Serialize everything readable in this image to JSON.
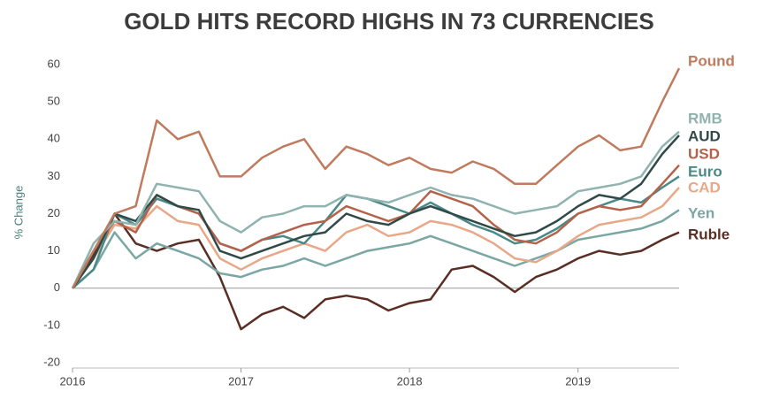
{
  "chart_data": {
    "type": "line",
    "title": "GOLD HITS RECORD HIGHS IN 73 CURRENCIES",
    "y_label": "% Change",
    "x": [
      2016,
      2016.125,
      2016.25,
      2016.375,
      2016.5,
      2016.625,
      2016.75,
      2016.875,
      2017,
      2017.125,
      2017.25,
      2017.375,
      2017.5,
      2017.625,
      2017.75,
      2017.875,
      2018,
      2018.125,
      2018.25,
      2018.375,
      2018.5,
      2018.625,
      2018.75,
      2018.875,
      2019,
      2019.125,
      2019.25,
      2019.375,
      2019.5,
      2019.6
    ],
    "xlim": [
      2016,
      2019.6
    ],
    "xticks": [
      2016,
      2017,
      2018,
      2019
    ],
    "ylim": [
      -20,
      60
    ],
    "yticks": [
      -20,
      -10,
      0,
      10,
      20,
      30,
      40,
      50,
      60
    ],
    "series": [
      {
        "name": "Pound",
        "color": "#c07a5e",
        "values": [
          0,
          10,
          20,
          22,
          45,
          40,
          42,
          30,
          30,
          35,
          38,
          40,
          32,
          38,
          36,
          33,
          35,
          32,
          31,
          34,
          32,
          28,
          28,
          33,
          38,
          41,
          37,
          38,
          50,
          59
        ]
      },
      {
        "name": "RMB",
        "color": "#8fb3ae",
        "values": [
          0,
          12,
          18,
          17,
          28,
          27,
          26,
          18,
          15,
          19,
          20,
          22,
          22,
          25,
          24,
          23,
          25,
          27,
          25,
          24,
          22,
          20,
          21,
          22,
          26,
          27,
          28,
          30,
          38,
          42
        ]
      },
      {
        "name": "AUD",
        "color": "#2f4a48",
        "values": [
          0,
          8,
          20,
          18,
          25,
          22,
          21,
          10,
          8,
          10,
          12,
          14,
          15,
          20,
          18,
          17,
          20,
          22,
          20,
          18,
          16,
          14,
          15,
          18,
          22,
          25,
          24,
          28,
          36,
          41
        ]
      },
      {
        "name": "USD",
        "color": "#b5624a",
        "values": [
          0,
          10,
          18,
          15,
          25,
          22,
          20,
          12,
          10,
          13,
          15,
          17,
          18,
          22,
          20,
          18,
          20,
          26,
          24,
          22,
          17,
          13,
          12,
          15,
          20,
          22,
          21,
          22,
          28,
          33
        ]
      },
      {
        "name": "Euro",
        "color": "#4a8a86",
        "values": [
          0,
          5,
          20,
          17,
          24,
          22,
          20,
          12,
          10,
          13,
          14,
          12,
          18,
          25,
          24,
          22,
          20,
          23,
          20,
          17,
          15,
          12,
          13,
          16,
          20,
          22,
          24,
          23,
          27,
          30
        ]
      },
      {
        "name": "CAD",
        "color": "#e8a888",
        "values": [
          0,
          8,
          17,
          16,
          22,
          18,
          17,
          8,
          5,
          8,
          10,
          12,
          10,
          15,
          17,
          14,
          15,
          18,
          17,
          15,
          12,
          8,
          7,
          10,
          14,
          17,
          18,
          19,
          22,
          27
        ]
      },
      {
        "name": "Yen",
        "color": "#7aa7a3",
        "values": [
          0,
          5,
          15,
          8,
          12,
          10,
          8,
          4,
          3,
          5,
          6,
          8,
          6,
          8,
          10,
          11,
          12,
          14,
          12,
          10,
          8,
          6,
          8,
          10,
          13,
          14,
          15,
          16,
          18,
          21
        ]
      },
      {
        "name": "Ruble",
        "color": "#5a2e24",
        "values": [
          0,
          9,
          20,
          12,
          10,
          12,
          13,
          3,
          -11,
          -7,
          -5,
          -8,
          -3,
          -2,
          -3,
          -6,
          -4,
          -3,
          5,
          6,
          3,
          -1,
          3,
          5,
          8,
          10,
          9,
          10,
          13,
          15
        ]
      }
    ]
  }
}
